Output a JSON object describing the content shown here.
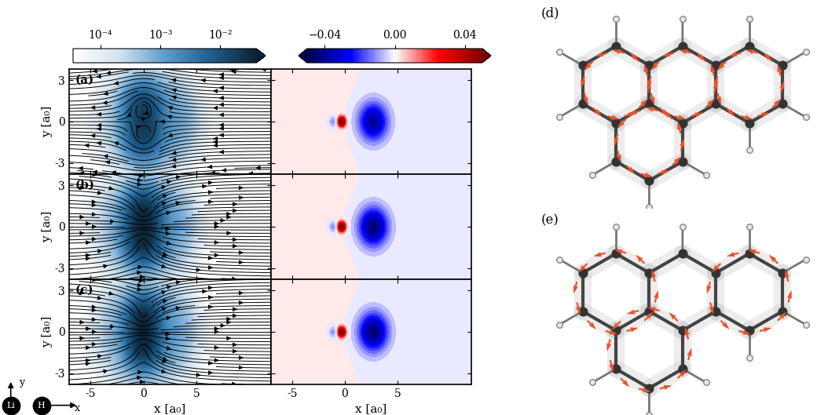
{
  "chart_data": {
    "type": "field_panels",
    "xlabel": "x [a₀]",
    "ylabel": "y [a₀]",
    "xlim": [
      -7,
      12
    ],
    "ylim": [
      -3.8,
      3.8
    ],
    "xticks": [
      -5,
      0,
      5
    ],
    "yticks": [
      -3,
      0,
      3
    ],
    "density_colorbar": {
      "log": true,
      "lim": [
        3.5e-05,
        0.04
      ],
      "ticks": [
        {
          "value": 0.0001,
          "label": "10⁻⁴"
        },
        {
          "value": 0.001,
          "label": "10⁻³"
        },
        {
          "value": 0.01,
          "label": "10⁻²"
        }
      ]
    },
    "difference_colorbar": {
      "lim": [
        -0.05,
        0.05
      ],
      "ticks": [
        {
          "value": -0.04,
          "label": "−0.04"
        },
        {
          "value": 0,
          "label": "0.00"
        },
        {
          "value": 0.04,
          "label": "0.04"
        }
      ]
    },
    "panels": [
      {
        "label": "(a)",
        "density": [
          {
            "x": 0,
            "y": 0.9,
            "amplitude": 0.015,
            "width": 0.9
          },
          {
            "x": 0,
            "y": -0.9,
            "amplitude": 0.015,
            "width": 0.9
          },
          {
            "x": 0,
            "y": 0,
            "amplitude": 0.001,
            "width": 2.2
          },
          {
            "x": 2.5,
            "y": 0,
            "amplitude": 0.0008,
            "width": 1.6
          }
        ],
        "vortices": [
          {
            "x": 0,
            "y": 1.0,
            "circulation": 1.0
          },
          {
            "x": 0,
            "y": -1.0,
            "circulation": -1.0
          }
        ],
        "uniform_flow": -0.12,
        "difference": [
          {
            "x": -0.3,
            "y": 0,
            "amplitude": 0.06,
            "width": 0.25
          },
          {
            "x": -1.1,
            "y": 0,
            "amplitude": -0.012,
            "width": 0.3
          },
          {
            "x": 2.7,
            "y": 0,
            "amplitude": -0.04,
            "width": 1.0
          },
          {
            "x": -1.3,
            "y": 2.3,
            "amplitude": 0.004,
            "width": 0.9
          },
          {
            "x": -1.3,
            "y": -2.3,
            "amplitude": 0.004,
            "width": 0.9
          }
        ]
      },
      {
        "label": "(b)",
        "density": [
          {
            "x": 0,
            "y": 0.9,
            "amplitude": 0.03,
            "width": 0.85
          },
          {
            "x": 0,
            "y": -0.9,
            "amplitude": 0.03,
            "width": 0.85
          },
          {
            "x": 0,
            "y": 0,
            "amplitude": 0.0015,
            "width": 2.2
          },
          {
            "x": 2.5,
            "y": 0,
            "amplitude": 0.0006,
            "width": 1.5
          }
        ],
        "vortices": [
          {
            "x": 0,
            "y": 1.0,
            "circulation": 1.0
          },
          {
            "x": 0,
            "y": -1.0,
            "circulation": -1.0
          }
        ],
        "uniform_flow": 0.1,
        "difference": [
          {
            "x": -0.3,
            "y": 0,
            "amplitude": 0.06,
            "width": 0.25
          },
          {
            "x": -1.1,
            "y": 0,
            "amplitude": -0.012,
            "width": 0.3
          },
          {
            "x": 2.7,
            "y": 0,
            "amplitude": -0.045,
            "width": 1.0
          },
          {
            "x": -1.3,
            "y": 2.3,
            "amplitude": 0.004,
            "width": 0.9
          },
          {
            "x": -1.3,
            "y": -2.3,
            "amplitude": 0.004,
            "width": 0.9
          }
        ]
      },
      {
        "label": "(c)",
        "density": [
          {
            "x": 0,
            "y": 0.9,
            "amplitude": 0.03,
            "width": 0.8
          },
          {
            "x": 0,
            "y": -0.9,
            "amplitude": 0.03,
            "width": 0.8
          },
          {
            "x": 0,
            "y": 0,
            "amplitude": 0.01,
            "width": 0.3
          },
          {
            "x": 0,
            "y": 0,
            "amplitude": 0.0015,
            "width": 2.2
          },
          {
            "x": 2.5,
            "y": 0,
            "amplitude": 0.0006,
            "width": 1.5
          }
        ],
        "vortices": [
          {
            "x": 0,
            "y": 1.0,
            "circulation": 1.0
          },
          {
            "x": 0,
            "y": -1.0,
            "circulation": -1.0
          }
        ],
        "uniform_flow": 0.1,
        "difference": [
          {
            "x": -0.3,
            "y": 0,
            "amplitude": 0.06,
            "width": 0.25
          },
          {
            "x": -1.1,
            "y": 0,
            "amplitude": -0.012,
            "width": 0.3
          },
          {
            "x": 2.7,
            "y": 0,
            "amplitude": -0.045,
            "width": 1.0
          },
          {
            "x": -1.3,
            "y": 2.3,
            "amplitude": 0.004,
            "width": 0.9
          },
          {
            "x": -1.3,
            "y": -2.3,
            "amplitude": 0.004,
            "width": 0.9
          }
        ]
      }
    ],
    "molecule_panels": [
      {
        "label": "(d)"
      },
      {
        "label": "(e)"
      }
    ],
    "key": {
      "atoms": [
        "Li",
        "H"
      ],
      "axes": [
        "y",
        "x"
      ]
    }
  }
}
